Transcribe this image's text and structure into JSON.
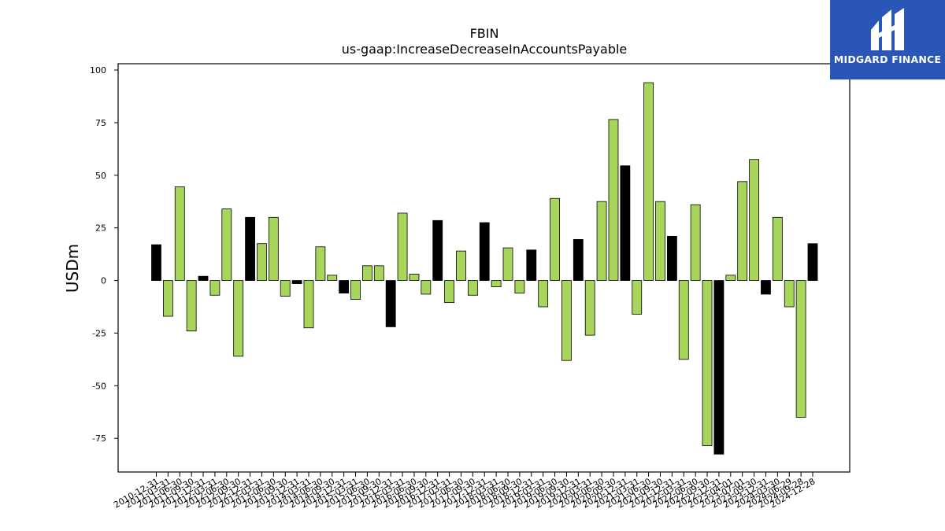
{
  "chart_data": {
    "type": "bar",
    "title": "FBIN",
    "subtitle": "us-gaap:IncreaseDecreaseInAccountsPayable",
    "xlabel": "",
    "ylabel": "USDm",
    "ylim": [
      -91,
      103
    ],
    "yticks": [
      100,
      75,
      50,
      25,
      0,
      -25,
      -50,
      -75
    ],
    "grid": false,
    "colors": {
      "fiscal_q4": "#000000",
      "other": "#a8d65c",
      "edge": "#000000"
    },
    "categories": [
      "2010-12-31",
      "2011-03-31",
      "2011-06-30",
      "2011-09-30",
      "2011-12-31",
      "2012-03-31",
      "2012-06-30",
      "2012-09-30",
      "2012-12-31",
      "2013-03-31",
      "2013-06-30",
      "2013-09-30",
      "2013-12-31",
      "2014-03-31",
      "2014-06-30",
      "2014-09-30",
      "2014-12-31",
      "2015-03-31",
      "2015-06-30",
      "2015-09-30",
      "2015-12-31",
      "2016-03-31",
      "2016-06-30",
      "2016-09-30",
      "2016-12-31",
      "2017-03-31",
      "2017-06-30",
      "2017-09-30",
      "2017-12-31",
      "2018-03-31",
      "2018-06-30",
      "2018-09-30",
      "2018-12-31",
      "2019-03-31",
      "2019-06-30",
      "2019-09-30",
      "2019-12-31",
      "2020-03-31",
      "2020-06-30",
      "2020-09-30",
      "2020-12-31",
      "2021-03-31",
      "2021-06-30",
      "2021-09-30",
      "2021-12-31",
      "2022-03-31",
      "2022-06-30",
      "2022-09-30",
      "2022-12-31",
      "2023-04-01",
      "2023-07-01",
      "2023-09-30",
      "2023-12-31",
      "2024-03-30",
      "2024-06-29",
      "2024-09-28",
      "2024-12-28"
    ],
    "values": [
      17,
      -17,
      44.5,
      -24,
      2,
      -7,
      34,
      -36,
      30,
      17.5,
      30,
      -7.5,
      -1.5,
      -22.5,
      16,
      2.5,
      -6,
      -9,
      7,
      7,
      -22,
      32,
      3,
      -6.5,
      28.5,
      -10.5,
      14,
      -7,
      27.5,
      -3,
      15.5,
      -6,
      14.5,
      -12.5,
      39,
      -38,
      19.5,
      -26,
      37.5,
      76.5,
      54.5,
      -16,
      94,
      37.5,
      21,
      -37.5,
      36,
      -78.5,
      -82.5,
      2.5,
      47,
      57.5,
      -6.5,
      30,
      -12.5,
      -65,
      17.5
    ],
    "highlight": [
      true,
      false,
      false,
      false,
      true,
      false,
      false,
      false,
      true,
      false,
      false,
      false,
      true,
      false,
      false,
      false,
      true,
      false,
      false,
      false,
      true,
      false,
      false,
      false,
      true,
      false,
      false,
      false,
      true,
      false,
      false,
      false,
      true,
      false,
      false,
      false,
      true,
      false,
      false,
      false,
      true,
      false,
      false,
      false,
      true,
      false,
      false,
      false,
      true,
      false,
      false,
      false,
      true,
      false,
      false,
      false,
      true
    ]
  },
  "brand": {
    "name": "MIDGARD FINANCE",
    "icon": "midgard-logo-icon",
    "background": "#2a56b8"
  }
}
